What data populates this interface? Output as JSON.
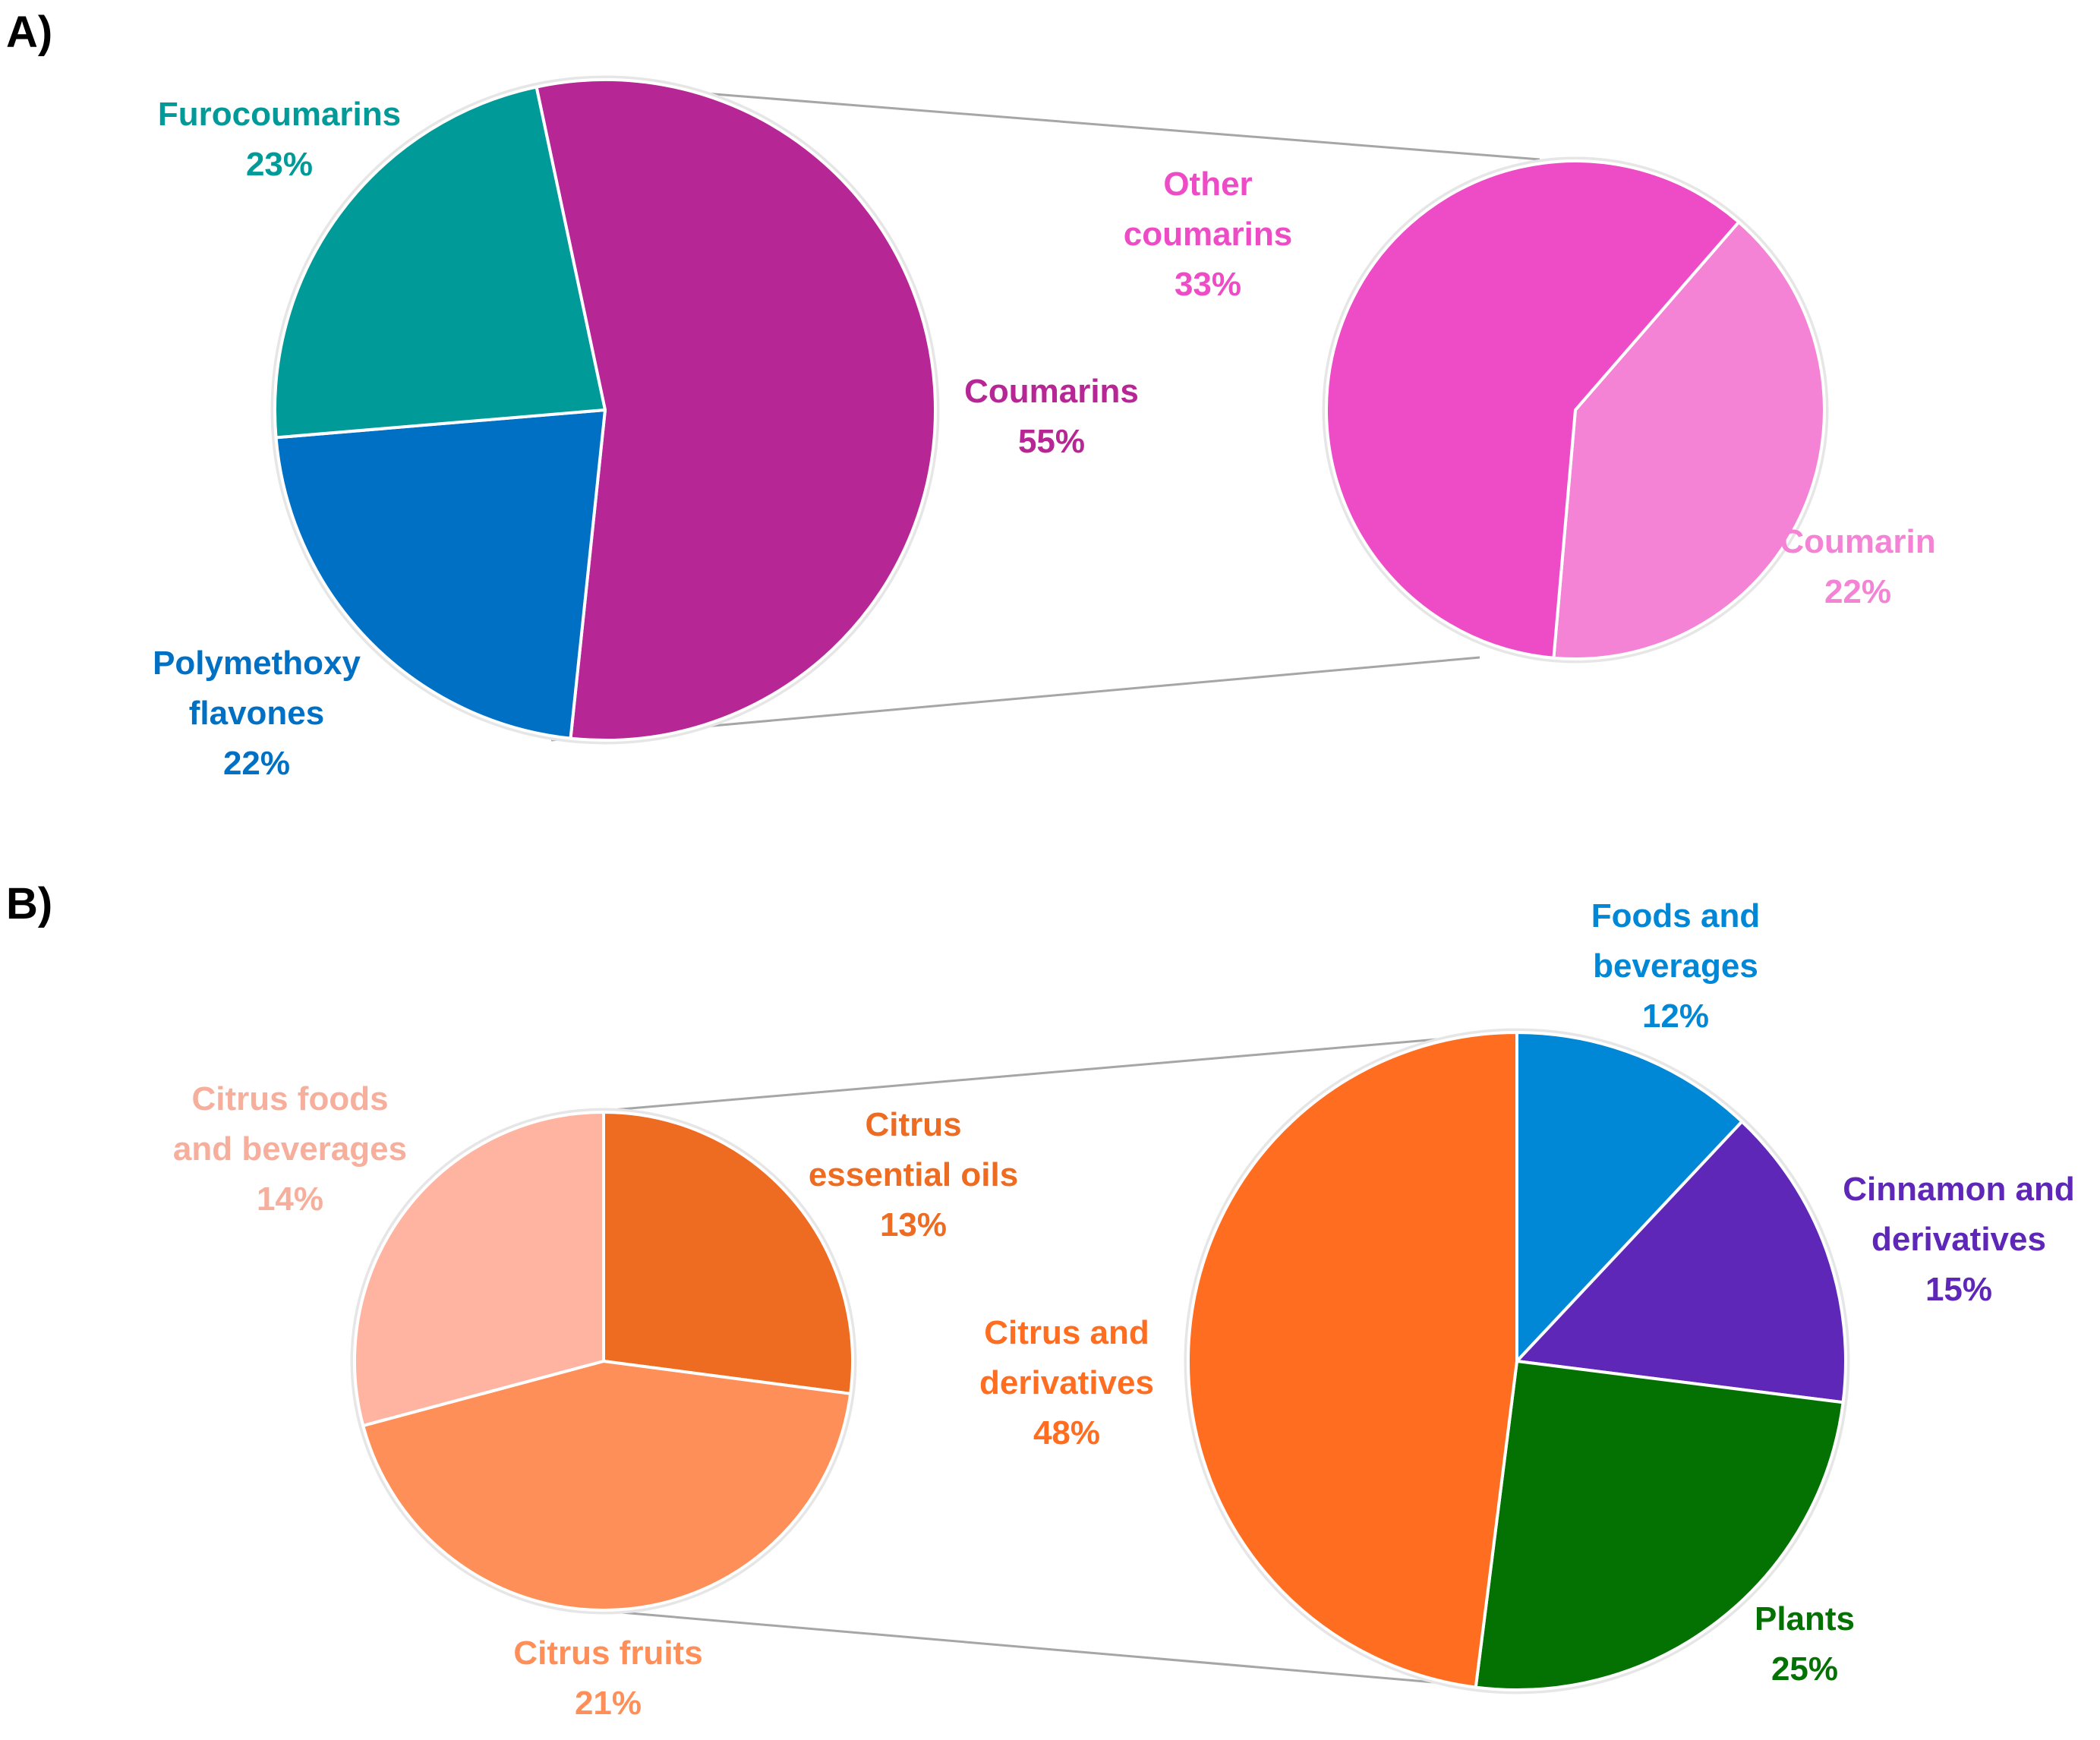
{
  "panels": [
    {
      "id": "A",
      "label": "A)"
    },
    {
      "id": "B",
      "label": "B)"
    }
  ],
  "chart_data": [
    {
      "type": "pie",
      "panel": "A)",
      "title": "",
      "slices": [
        {
          "key": "coumarins",
          "lines": [
            "Coumarins",
            "55%"
          ],
          "value": 55,
          "color": "#B72695"
        },
        {
          "key": "polymethoxy-flavones",
          "lines": [
            "Polymethoxy",
            "flavones",
            "22%"
          ],
          "value": 22,
          "color": "#0070C4"
        },
        {
          "key": "furocoumarins",
          "lines": [
            "Furocoumarins",
            "23%"
          ],
          "value": 23,
          "color": "#009A98"
        }
      ],
      "exploded_slice": "Coumarins"
    },
    {
      "type": "pie",
      "panel": "A)",
      "title": "",
      "parent": "Coumarins",
      "slices": [
        {
          "key": "coumarin",
          "lines": [
            "Coumarin",
            "22%"
          ],
          "value": 22,
          "color": "#F483D5"
        },
        {
          "key": "other-coumarins",
          "lines": [
            "Other",
            "coumarins",
            "33%"
          ],
          "value": 33,
          "color": "#EE4CC6"
        }
      ]
    },
    {
      "type": "pie",
      "panel": "B)",
      "title": "",
      "slices": [
        {
          "key": "citrus-essential-oils",
          "lines": [
            "Citrus",
            "essential oils",
            "13%"
          ],
          "value": 13,
          "color": "#EE6B22"
        },
        {
          "key": "citrus-fruits",
          "lines": [
            "Citrus fruits",
            "21%"
          ],
          "value": 21,
          "color": "#FF8F59"
        },
        {
          "key": "citrus-foods-and-beverages",
          "lines": [
            "Citrus foods",
            "and beverages",
            "14%"
          ],
          "value": 14,
          "color": "#FFB4A2"
        }
      ],
      "parent": "Citrus and derivatives"
    },
    {
      "type": "pie",
      "panel": "B)",
      "title": "",
      "slices": [
        {
          "key": "foods-and-beverages",
          "lines": [
            "Foods and",
            "beverages",
            "12%"
          ],
          "value": 12,
          "color": "#0088D7"
        },
        {
          "key": "cinnamon-and-derivatives",
          "lines": [
            "Cinnamon and",
            "derivatives",
            "15%"
          ],
          "value": 15,
          "color": "#5E27B8"
        },
        {
          "key": "plants",
          "lines": [
            "Plants",
            "25%"
          ],
          "value": 25,
          "color": "#047203"
        },
        {
          "key": "citrus-and-derivatives",
          "lines": [
            "Citrus and",
            "derivatives",
            "48%"
          ],
          "value": 48,
          "color": "#FF6D21"
        }
      ],
      "exploded_slice": "Citrus and derivatives"
    }
  ]
}
